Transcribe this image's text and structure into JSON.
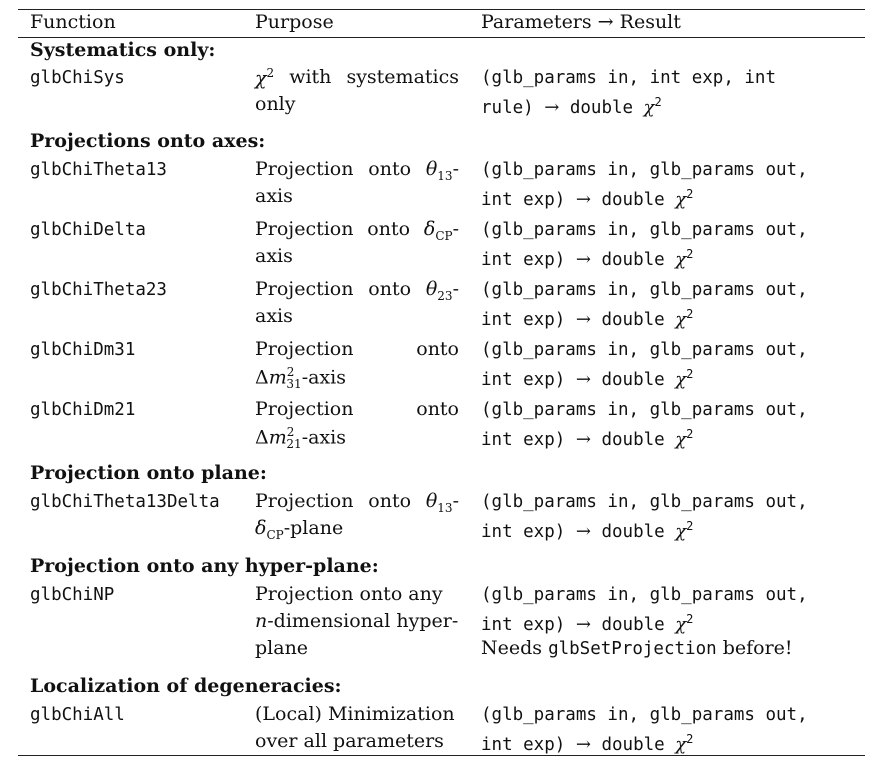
{
  "header": {
    "function": "Function",
    "purpose": "Purpose",
    "parameters": "Parameters → Result"
  },
  "sections": [
    {
      "title": "Systematics only:",
      "rows": [
        {
          "fn": "glbChiSys",
          "purpose": [
            "χ² with systematics",
            "only"
          ],
          "params": [
            "(glb_params in, int exp, int",
            "rule) → double χ²"
          ]
        }
      ]
    },
    {
      "title": "Projections onto axes:",
      "rows": [
        {
          "fn": "glbChiTheta13",
          "purpose": [
            "Projection onto θ13-",
            "axis"
          ],
          "params": [
            "(glb_params in, glb_params out,",
            "int exp) → double χ²"
          ]
        },
        {
          "fn": "glbChiDelta",
          "purpose": [
            "Projection onto δCP-",
            "axis"
          ],
          "params": [
            "(glb_params in, glb_params out,",
            "int exp) → double χ²"
          ]
        },
        {
          "fn": "glbChiTheta23",
          "purpose": [
            "Projection onto θ23-",
            "axis"
          ],
          "params": [
            "(glb_params in, glb_params out,",
            "int exp) → double χ²"
          ]
        },
        {
          "fn": "glbChiDm31",
          "purpose": [
            "Projection onto",
            "Δm²31-axis"
          ],
          "params": [
            "(glb_params in, glb_params out,",
            "int exp) → double χ²"
          ]
        },
        {
          "fn": "glbChiDm21",
          "purpose": [
            "Projection onto",
            "Δm²21-axis"
          ],
          "params": [
            "(glb_params in, glb_params out,",
            "int exp) → double χ²"
          ]
        }
      ]
    },
    {
      "title": "Projection onto plane:",
      "rows": [
        {
          "fn": "glbChiTheta13Delta",
          "purpose": [
            "Projection onto θ13-",
            "δCP-plane"
          ],
          "params": [
            "(glb_params in, glb_params out,",
            "int exp) → double χ²"
          ]
        }
      ]
    },
    {
      "title": "Projection onto any hyper-plane:",
      "rows": [
        {
          "fn": "glbChiNP",
          "purpose": [
            "Projection onto any",
            "n-dimensional hyper-",
            "plane"
          ],
          "params": [
            "(glb_params in, glb_params out,",
            "int exp) → double χ²",
            "Needs glbSetProjection before!"
          ]
        }
      ]
    },
    {
      "title": "Localization of degeneracies:",
      "rows": [
        {
          "fn": "glbChiAll",
          "purpose": [
            "(Local) Minimization",
            "over all parameters"
          ],
          "params": [
            "(glb_params in, glb_params out,",
            "int exp) → double χ²"
          ]
        }
      ]
    }
  ]
}
